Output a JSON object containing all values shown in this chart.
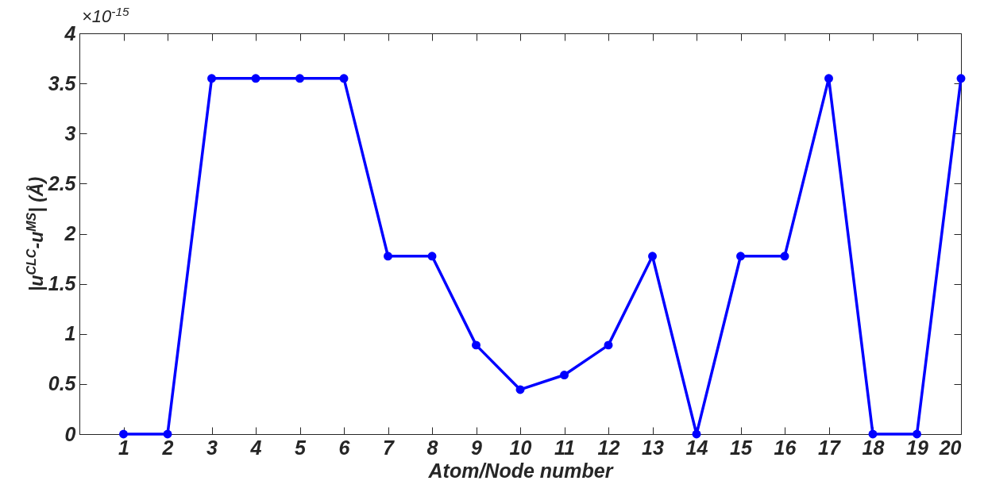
{
  "chart_data": {
    "type": "line",
    "xlabel": "Atom/Node number",
    "ylabel": "|u$^{CLC}$-u$^{MS}$| (Å)",
    "annotations": [
      "×10$^{-15}$"
    ],
    "x": [
      1,
      2,
      3,
      4,
      5,
      6,
      7,
      8,
      9,
      10,
      11,
      12,
      13,
      14,
      15,
      16,
      17,
      18,
      19,
      20
    ],
    "series": [
      {
        "color": "#0000ff",
        "values": [
          0,
          0,
          3.55,
          3.55,
          3.55,
          3.55,
          1.776,
          1.776,
          0.888,
          0.444,
          0.59,
          0.888,
          1.776,
          0,
          1.776,
          1.776,
          3.55,
          0,
          0,
          3.55
        ]
      }
    ],
    "xlim": [
      0,
      20
    ],
    "xticks": [
      1,
      2,
      3,
      4,
      5,
      6,
      7,
      8,
      9,
      10,
      11,
      12,
      13,
      14,
      15,
      16,
      17,
      18,
      19,
      20
    ],
    "ylim": [
      0,
      4
    ],
    "yticks": [
      0,
      0.5,
      1,
      1.5,
      2,
      2.5,
      3,
      3.5,
      4
    ],
    "marker": "circle",
    "line_style": "solid",
    "grid": false
  }
}
